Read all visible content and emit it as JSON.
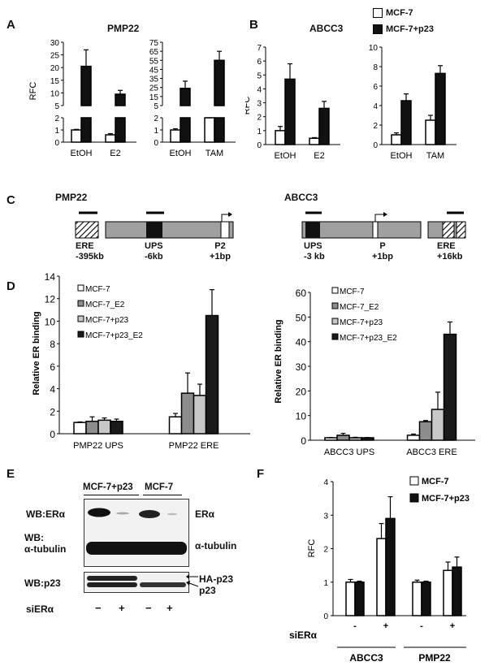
{
  "panels": {
    "A": {
      "letter": "A",
      "title": "PMP22",
      "ylabel": "RFC",
      "left": {
        "categories": [
          "EtOH",
          "E2"
        ],
        "legend": [
          "MCF-7",
          "MCF-7+p23"
        ],
        "values": {
          "MCF-7": [
            1.0,
            0.6
          ],
          "MCF-7+p23": [
            20.5,
            9.5
          ]
        },
        "errors": {
          "MCF-7": [
            0.05,
            0.1
          ],
          "MCF-7+p23": [
            6.5,
            1.5
          ]
        },
        "low_ticks": [
          "0",
          "1",
          "2"
        ],
        "high_ticks": [
          "5",
          "10",
          "15",
          "20",
          "25",
          "30"
        ]
      },
      "right": {
        "categories": [
          "EtOH",
          "TAM"
        ],
        "values": {
          "MCF-7": [
            1.0,
            2.0
          ],
          "MCF-7+p23": [
            24,
            55
          ]
        },
        "errors": {
          "MCF-7": [
            0.1,
            0.1
          ],
          "MCF-7+p23": [
            8,
            10
          ]
        },
        "low_ticks": [
          "0",
          "1",
          "2"
        ],
        "high_ticks": [
          "5",
          "15",
          "25",
          "35",
          "45",
          "55",
          "65",
          "75"
        ]
      }
    },
    "B": {
      "letter": "B",
      "title": "ABCC3",
      "ylabel": "RFC",
      "legend": [
        "MCF-7",
        "MCF-7+p23"
      ],
      "left": {
        "categories": [
          "EtOH",
          "E2"
        ],
        "ticks": [
          "0",
          "1",
          "2",
          "3",
          "4",
          "5",
          "6",
          "7"
        ],
        "ymax": 7,
        "values": {
          "MCF-7": [
            1.0,
            0.45
          ],
          "MCF-7+p23": [
            4.7,
            2.6
          ]
        },
        "errors": {
          "MCF-7": [
            0.3,
            0.05
          ],
          "MCF-7+p23": [
            1.1,
            0.5
          ]
        }
      },
      "right": {
        "categories": [
          "EtOH",
          "TAM"
        ],
        "ticks": [
          "0",
          "2",
          "4",
          "6",
          "8",
          "10"
        ],
        "ymax": 10,
        "values": {
          "MCF-7": [
            1.0,
            2.5
          ],
          "MCF-7+p23": [
            4.5,
            7.3
          ]
        },
        "errors": {
          "MCF-7": [
            0.2,
            0.5
          ],
          "MCF-7+p23": [
            0.7,
            0.8
          ]
        }
      }
    },
    "C": {
      "letter": "C",
      "pmp22": {
        "title": "PMP22",
        "elements": [
          {
            "name": "ERE",
            "pos": "-395kb"
          },
          {
            "name": "UPS",
            "pos": "-6kb"
          },
          {
            "name": "P2",
            "pos": "+1bp"
          }
        ]
      },
      "abcc3": {
        "title": "ABCC3",
        "elements": [
          {
            "name": "UPS",
            "pos": "-3 kb"
          },
          {
            "name": "P",
            "pos": "+1bp"
          },
          {
            "name": "ERE",
            "pos": "+16kb"
          }
        ]
      }
    },
    "D": {
      "letter": "D",
      "ylabel": "Relative ER binding",
      "legend": [
        "MCF-7",
        "MCF-7_E2",
        "MCF-7+p23",
        "MCF-7+p23_E2"
      ],
      "colors": [
        "#ffffff",
        "#8c8c8c",
        "#c8c8c8",
        "#1a1a1a"
      ],
      "left": {
        "categories": [
          "PMP22 UPS",
          "PMP22 ERE"
        ],
        "ticks": [
          "0",
          "2",
          "4",
          "6",
          "8",
          "10",
          "12",
          "14"
        ],
        "ymax": 14,
        "values": [
          [
            1.0,
            1.1,
            1.2,
            1.1
          ],
          [
            1.5,
            3.6,
            3.4,
            10.5
          ]
        ],
        "errors": [
          [
            0.05,
            0.4,
            0.2,
            0.2
          ],
          [
            0.3,
            1.8,
            1.0,
            2.3
          ]
        ]
      },
      "right": {
        "categories": [
          "ABCC3 UPS",
          "ABCC3 ERE"
        ],
        "ticks": [
          "0",
          "10",
          "20",
          "30",
          "40",
          "50",
          "60"
        ],
        "ymax": 60,
        "values": [
          [
            1.0,
            2.0,
            1.0,
            1.0
          ],
          [
            2.0,
            7.5,
            12.5,
            43.0
          ]
        ],
        "errors": [
          [
            0.1,
            0.8,
            0.2,
            0.1
          ],
          [
            0.5,
            0.5,
            7.0,
            5.0
          ]
        ]
      }
    },
    "E": {
      "letter": "E",
      "header_left": "MCF-7+p23",
      "header_right": "MCF-7",
      "rows": [
        {
          "left": "WB:ERα",
          "right": "ERα"
        },
        {
          "left": "WB:",
          "left2": "α-tubulin",
          "right": "α-tubulin"
        },
        {
          "left": "WB:p23",
          "right": "HA-p23",
          "right2": "p23"
        }
      ],
      "siRNA_label": "siERα",
      "signs": [
        "−",
        "+",
        "−",
        "+"
      ]
    },
    "F": {
      "letter": "F",
      "ylabel": "RFC",
      "legend": [
        "MCF-7",
        "MCF-7+p23"
      ],
      "ticks": [
        "0",
        "1",
        "2",
        "3",
        "4"
      ],
      "ymax": 4,
      "siRNA_label": "siERα",
      "signs": [
        "-",
        "+",
        "-",
        "+"
      ],
      "groups": [
        "ABCC3",
        "PMP22"
      ],
      "values": {
        "MCF-7": [
          1.0,
          2.3,
          1.0,
          1.35
        ],
        "MCF-7+p23": [
          1.0,
          2.9,
          1.0,
          1.45
        ]
      },
      "errors": {
        "MCF-7": [
          0.08,
          0.45,
          0.06,
          0.25
        ],
        "MCF-7+p23": [
          0.03,
          0.65,
          0.03,
          0.3
        ]
      }
    }
  }
}
